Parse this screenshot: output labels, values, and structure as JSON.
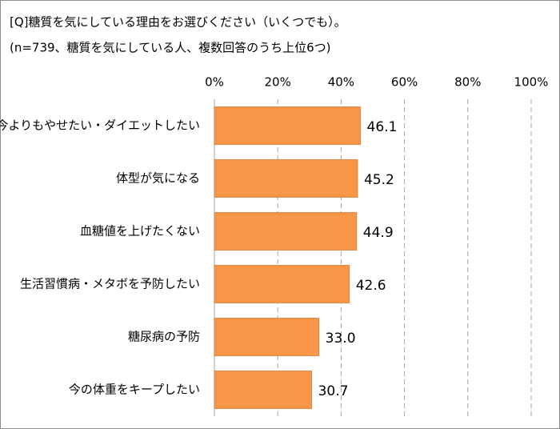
{
  "chart_data": {
    "type": "hbar",
    "title": "[Q]糖質を気にしている理由をお選びください（いくつでも）。",
    "subtitle": "(n=739、糖質を気にしている人、複数回答のうち上位6つ)",
    "categories": [
      "今よりもやせたい・ダイエットしたい",
      "体型が気になる",
      "血糖値を上げたくない",
      "生活習慣病・メタボを予防したい",
      "糖尿病の予防",
      "今の体重をキープしたい"
    ],
    "values": [
      46.1,
      45.2,
      44.9,
      42.6,
      33.0,
      30.7
    ],
    "value_labels": [
      "46.1",
      "45.2",
      "44.9",
      "42.6",
      "33.0",
      "30.7"
    ],
    "color": "#f79646",
    "xlim": [
      0,
      100
    ],
    "xticks": [
      {
        "value": 0,
        "label": "0%"
      },
      {
        "value": 20,
        "label": "20%"
      },
      {
        "value": 40,
        "label": "40%"
      },
      {
        "value": 60,
        "label": "60%"
      },
      {
        "value": 80,
        "label": "80%"
      },
      {
        "value": 100,
        "label": "100%"
      }
    ],
    "grid": true
  }
}
